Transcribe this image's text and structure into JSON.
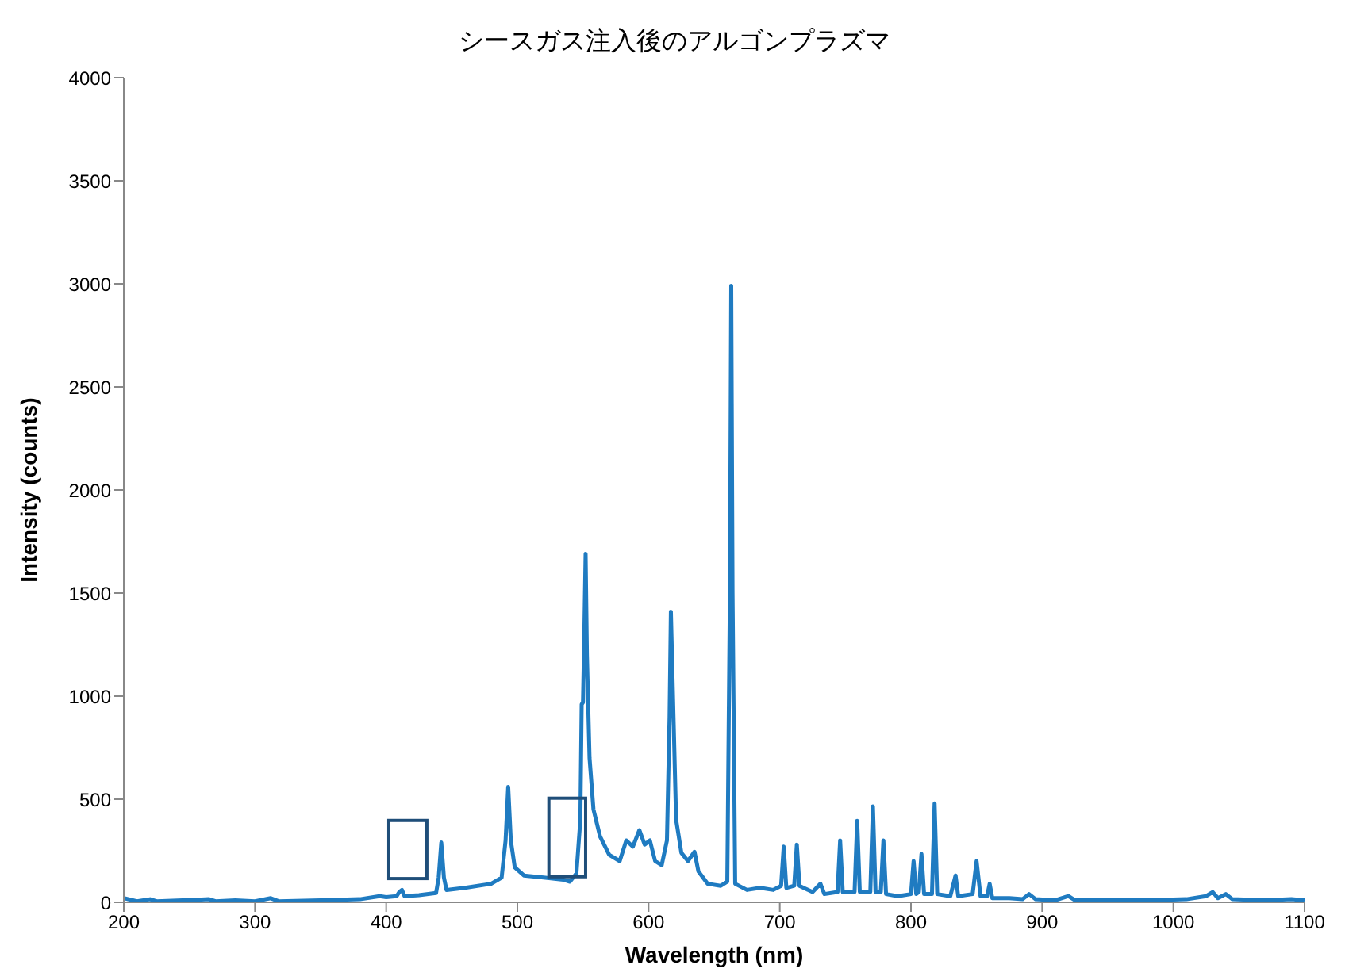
{
  "chart_data": {
    "type": "line",
    "title": "シースガス注入後のアルゴンプラズマ",
    "xlabel": "Wavelength (nm)",
    "ylabel": "Intensity (counts)",
    "xlim": [
      200,
      1100
    ],
    "xticks": [
      200,
      300,
      400,
      500,
      600,
      700,
      800,
      900,
      1000,
      1100
    ],
    "ylim": [
      0,
      4000
    ],
    "yticks": [
      0,
      500,
      1000,
      1500,
      2000,
      2500,
      3000,
      3500,
      4000
    ],
    "grid": false,
    "legend": false,
    "marker": "none",
    "line_style": "solid",
    "series": [
      {
        "color": "#1f7bc1",
        "x": [
          200,
          210,
          220,
          225,
          265,
          270,
          285,
          300,
          312,
          318,
          350,
          380,
          395,
          400,
          408,
          410,
          412,
          414,
          425,
          438,
          440,
          442,
          444,
          446,
          460,
          480,
          488,
          491,
          493,
          495,
          498,
          505,
          520,
          535,
          540,
          545,
          548,
          549,
          550,
          551,
          552,
          553,
          555,
          558,
          563,
          570,
          578,
          583,
          588,
          593,
          597,
          601,
          605,
          610,
          614,
          616,
          617,
          619,
          621,
          625,
          630,
          635,
          638,
          645,
          655,
          660,
          662,
          663,
          664,
          666,
          675,
          685,
          695,
          701,
          703,
          705,
          711,
          713,
          715,
          725,
          731,
          734,
          744,
          746,
          748,
          757,
          759,
          761,
          769,
          771,
          773,
          777,
          779,
          781,
          790,
          800,
          802,
          804,
          806,
          808,
          810,
          816,
          818,
          820,
          830,
          834,
          836,
          847,
          850,
          853,
          858,
          860,
          862,
          875,
          885,
          890,
          895,
          910,
          920,
          925,
          950,
          980,
          1010,
          1025,
          1030,
          1034,
          1040,
          1045,
          1070,
          1090,
          1100
        ],
        "values": [
          20,
          5,
          15,
          5,
          15,
          5,
          10,
          5,
          20,
          5,
          10,
          15,
          30,
          25,
          30,
          50,
          60,
          30,
          35,
          45,
          120,
          290,
          120,
          60,
          70,
          90,
          120,
          300,
          560,
          300,
          170,
          130,
          120,
          110,
          100,
          140,
          400,
          960,
          970,
          1300,
          1690,
          1200,
          700,
          450,
          320,
          230,
          200,
          300,
          270,
          350,
          280,
          300,
          200,
          180,
          300,
          900,
          1410,
          900,
          400,
          240,
          200,
          245,
          150,
          90,
          80,
          100,
          1500,
          2990,
          1500,
          90,
          60,
          70,
          60,
          80,
          270,
          70,
          80,
          280,
          80,
          50,
          90,
          40,
          50,
          300,
          50,
          50,
          395,
          50,
          50,
          465,
          50,
          50,
          300,
          40,
          30,
          40,
          200,
          40,
          50,
          235,
          40,
          40,
          480,
          40,
          30,
          130,
          30,
          40,
          200,
          30,
          30,
          90,
          20,
          20,
          15,
          40,
          15,
          10,
          30,
          10,
          10,
          10,
          15,
          30,
          50,
          20,
          40,
          15,
          10,
          15,
          10
        ]
      }
    ]
  }
}
